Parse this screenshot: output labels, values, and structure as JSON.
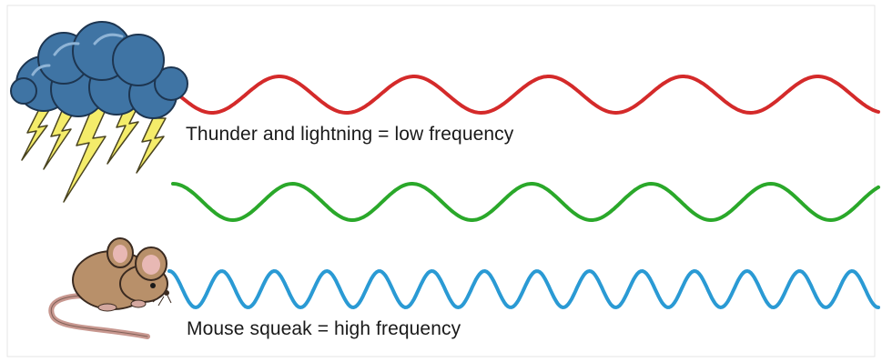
{
  "captions": {
    "thunder": "Thunder and lightning = low frequency",
    "mouse": "Mouse squeak = high frequency"
  },
  "waves": [
    {
      "id": "low",
      "color": "#d42a2a",
      "cycles": 5.2
    },
    {
      "id": "medium",
      "color": "#2aa82a",
      "cycles": 5.9
    },
    {
      "id": "high",
      "color": "#2a9ad4",
      "cycles": 13.5
    }
  ],
  "colors": {
    "cloud_fill": "#3f74a4",
    "cloud_stroke": "#1d3550",
    "lightning_fill": "#f4ec6a",
    "lightning_stroke": "#4a4420",
    "mouse_body": "#b8906a",
    "mouse_ear_inner": "#e8b8b4",
    "mouse_tail": "#c89890",
    "outline": "#3a2a20"
  },
  "icons": {
    "storm": "storm-cloud-icon",
    "mouse": "mouse-icon"
  }
}
